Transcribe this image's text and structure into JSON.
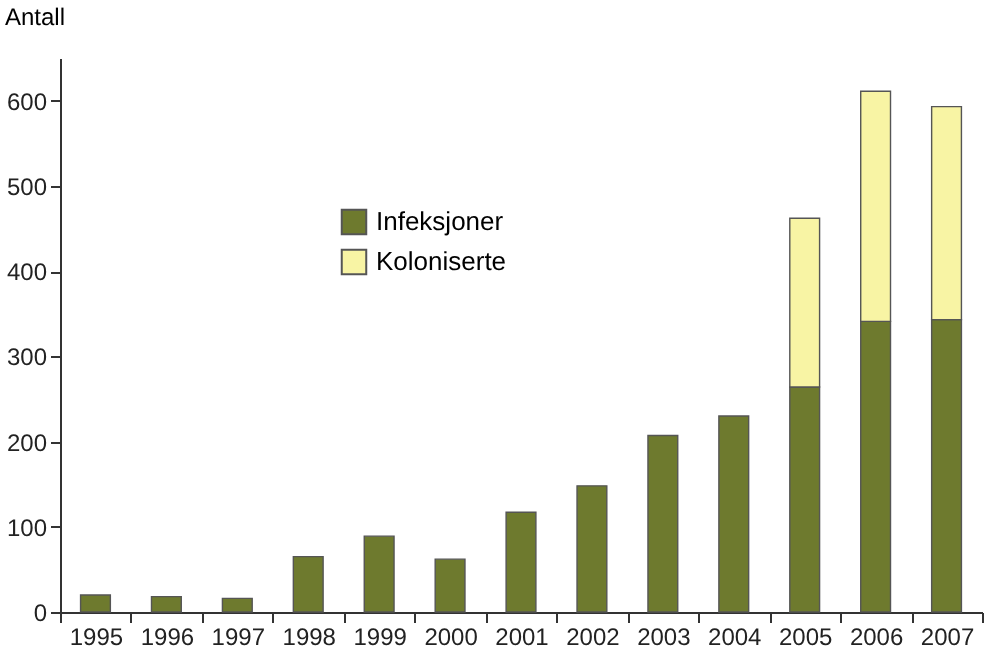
{
  "chart_data": {
    "type": "bar",
    "stacked": true,
    "ylabel": "Antall",
    "categories": [
      "1995",
      "1996",
      "1997",
      "1998",
      "1999",
      "2000",
      "2001",
      "2002",
      "2003",
      "2004",
      "2005",
      "2006",
      "2007"
    ],
    "series": [
      {
        "name": "Infeksjoner",
        "color": "#6e7a2e",
        "values": [
          20,
          18,
          16,
          65,
          89,
          62,
          117,
          148,
          207,
          230,
          264,
          341,
          343
        ]
      },
      {
        "name": "Koloniserte",
        "color": "#f8f4a4",
        "values": [
          null,
          null,
          null,
          null,
          null,
          null,
          null,
          null,
          null,
          null,
          198,
          270,
          250
        ]
      }
    ],
    "ylim": [
      0,
      650
    ],
    "yticks": [
      0,
      100,
      200,
      300,
      400,
      500,
      600
    ],
    "grid": false,
    "legend": "top left"
  }
}
